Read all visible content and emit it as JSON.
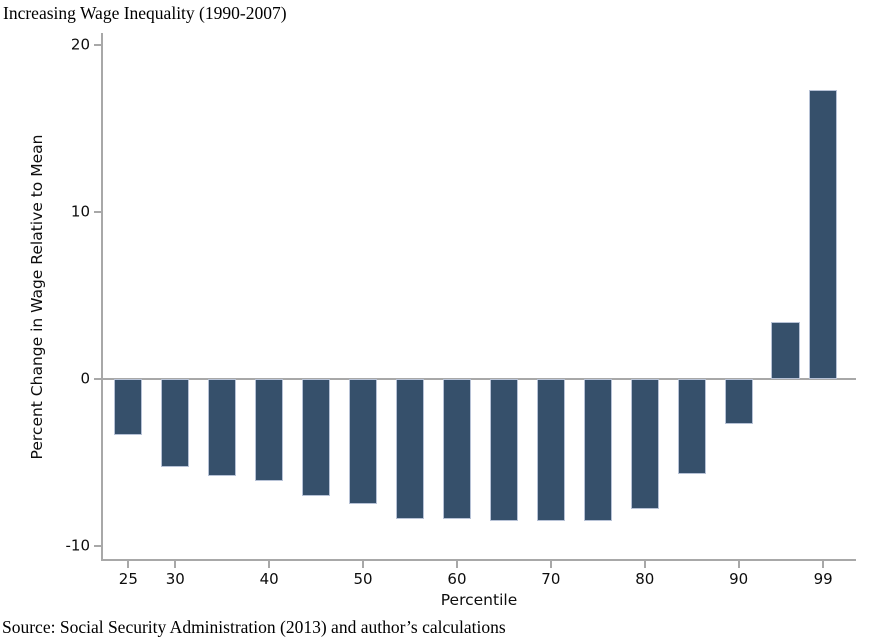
{
  "chart_data": {
    "type": "bar",
    "title": "Increasing Wage Inequality (1990-2007)",
    "xlabel": "Percentile",
    "ylabel": "Percent Change in Wage Relative to Mean",
    "categories": [
      25,
      30,
      35,
      40,
      45,
      50,
      55,
      60,
      65,
      70,
      75,
      80,
      85,
      90,
      95,
      99
    ],
    "values": [
      -3.4,
      -5.3,
      -5.8,
      -6.1,
      -7.0,
      -7.5,
      -8.4,
      -8.4,
      -8.5,
      -8.5,
      -8.5,
      -7.8,
      -5.7,
      -2.7,
      3.4,
      17.3
    ],
    "x_tick_values": [
      25,
      30,
      40,
      50,
      60,
      70,
      80,
      90,
      99
    ],
    "x_tick_labels": [
      "25",
      "30",
      "40",
      "50",
      "60",
      "70",
      "80",
      "90",
      "99"
    ],
    "y_tick_values": [
      -10,
      0,
      10,
      20
    ],
    "y_tick_labels": [
      "-10",
      "0",
      "10",
      "20"
    ],
    "xlim": [
      22.3,
      102.5
    ],
    "ylim": [
      -10.8,
      20.7
    ],
    "bar_width_units": 3,
    "zero_line": true,
    "grid": false,
    "legend_position": "none",
    "bar_color": "#36506b",
    "bar_border_color": "#b7c2d6",
    "axis_color": "#a8a8a8",
    "text_color": "#0d0d0d"
  },
  "source_note": "Source: Social Security Administration (2013) and author’s calculations"
}
